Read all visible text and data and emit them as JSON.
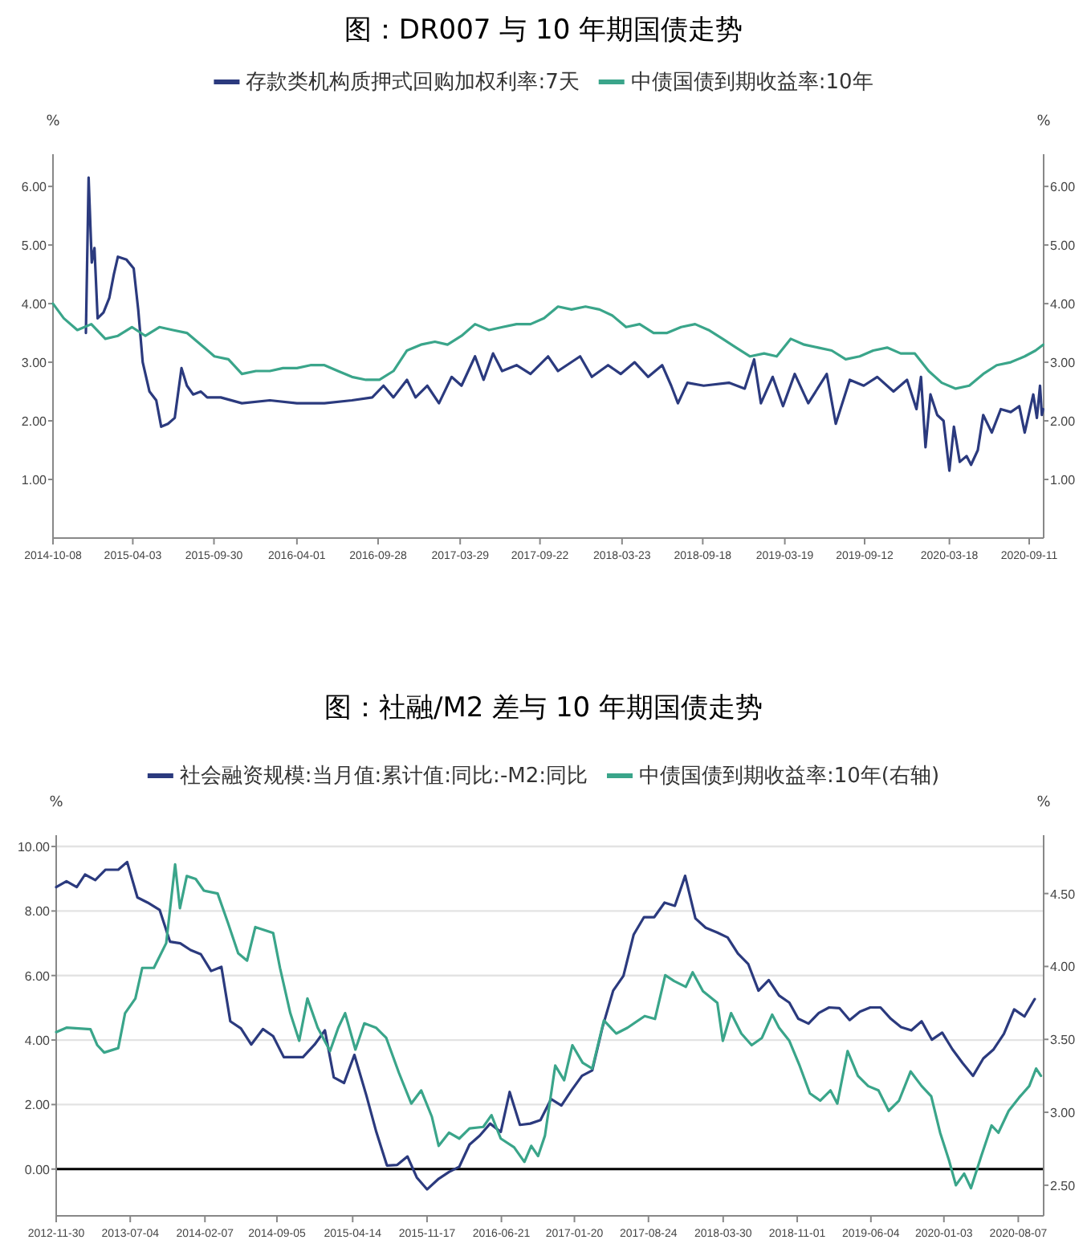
{
  "chart_data": [
    {
      "type": "line",
      "title": "图：DR007 与 10 年期国债走势",
      "ylabel": "%",
      "y2label": "%",
      "legend": "top",
      "xlim": [
        "2014-10-08",
        "2020-10-13"
      ],
      "xticks": [
        "2014-10-08",
        "2015-04-03",
        "2015-09-30",
        "2016-04-01",
        "2016-09-28",
        "2017-03-29",
        "2017-09-22",
        "2018-03-23",
        "2018-09-18",
        "2019-03-19",
        "2019-09-12",
        "2020-03-18",
        "2020-09-11"
      ],
      "ylim": [
        0,
        6.55
      ],
      "yticks": [
        {
          "value": 1,
          "label": "1.00"
        },
        {
          "value": 2,
          "label": "2.00"
        },
        {
          "value": 3,
          "label": "3.00"
        },
        {
          "value": 4,
          "label": "4.00"
        },
        {
          "value": 5,
          "label": "5.00"
        },
        {
          "value": 6,
          "label": "6.00"
        }
      ],
      "y2lim": [
        0,
        6.55
      ],
      "y2ticks": [
        {
          "value": 1,
          "label": "1.00"
        },
        {
          "value": 2,
          "label": "2.00"
        },
        {
          "value": 3,
          "label": "3.00"
        },
        {
          "value": 4,
          "label": "4.00"
        },
        {
          "value": 5,
          "label": "5.00"
        },
        {
          "value": 6,
          "label": "6.00"
        }
      ],
      "series": [
        {
          "name": "存款类机构质押式回购加权利率:7天",
          "color": "#2b3a7e",
          "x": [
            "2014-12-20",
            "2014-12-26",
            "2015-01-02",
            "2015-01-08",
            "2015-01-15",
            "2015-01-28",
            "2015-02-10",
            "2015-02-20",
            "2015-03-01",
            "2015-03-20",
            "2015-04-05",
            "2015-04-15",
            "2015-04-25",
            "2015-05-10",
            "2015-05-25",
            "2015-06-05",
            "2015-06-20",
            "2015-07-05",
            "2015-07-20",
            "2015-08-01",
            "2015-08-15",
            "2015-09-01",
            "2015-09-15",
            "2015-10-15",
            "2015-12-01",
            "2016-02-01",
            "2016-04-01",
            "2016-06-01",
            "2016-08-01",
            "2016-09-15",
            "2016-10-10",
            "2016-11-01",
            "2016-12-01",
            "2016-12-20",
            "2017-01-15",
            "2017-02-10",
            "2017-03-10",
            "2017-04-01",
            "2017-05-01",
            "2017-05-20",
            "2017-06-10",
            "2017-06-30",
            "2017-08-01",
            "2017-09-01",
            "2017-10-10",
            "2017-11-01",
            "2017-12-20",
            "2018-01-15",
            "2018-02-20",
            "2018-03-20",
            "2018-04-20",
            "2018-05-20",
            "2018-06-20",
            "2018-07-10",
            "2018-07-25",
            "2018-08-15",
            "2018-09-20",
            "2018-11-15",
            "2018-12-20",
            "2019-01-10",
            "2019-01-25",
            "2019-02-20",
            "2019-03-15",
            "2019-04-10",
            "2019-05-10",
            "2019-06-20",
            "2019-07-10",
            "2019-08-10",
            "2019-09-10",
            "2019-10-10",
            "2019-11-15",
            "2019-12-15",
            "2020-01-05",
            "2020-01-15",
            "2020-01-25",
            "2020-02-05",
            "2020-02-20",
            "2020-03-05",
            "2020-03-18",
            "2020-03-28",
            "2020-04-10",
            "2020-04-25",
            "2020-05-05",
            "2020-05-20",
            "2020-06-01",
            "2020-06-20",
            "2020-07-10",
            "2020-08-01",
            "2020-08-20",
            "2020-09-01",
            "2020-09-20",
            "2020-09-28",
            "2020-10-05",
            "2020-10-09",
            "2020-10-12"
          ],
          "values": [
            3.5,
            6.15,
            4.7,
            4.95,
            3.75,
            3.85,
            4.1,
            4.5,
            4.8,
            4.75,
            4.6,
            3.9,
            3.0,
            2.5,
            2.35,
            1.9,
            1.95,
            2.05,
            2.9,
            2.6,
            2.45,
            2.5,
            2.4,
            2.4,
            2.3,
            2.35,
            2.3,
            2.3,
            2.35,
            2.4,
            2.6,
            2.4,
            2.7,
            2.4,
            2.6,
            2.3,
            2.75,
            2.6,
            3.1,
            2.7,
            3.15,
            2.85,
            2.95,
            2.8,
            3.1,
            2.85,
            3.1,
            2.75,
            2.95,
            2.8,
            3.0,
            2.75,
            2.95,
            2.6,
            2.3,
            2.65,
            2.6,
            2.65,
            2.55,
            3.05,
            2.3,
            2.75,
            2.25,
            2.8,
            2.3,
            2.8,
            1.95,
            2.7,
            2.6,
            2.75,
            2.5,
            2.7,
            2.2,
            2.75,
            1.55,
            2.45,
            2.1,
            2.0,
            1.15,
            1.9,
            1.3,
            1.4,
            1.25,
            1.5,
            2.1,
            1.8,
            2.2,
            2.15,
            2.25,
            1.8,
            2.45,
            2.05,
            2.6,
            2.1,
            2.2
          ]
        },
        {
          "name": "中债国债到期收益率:10年",
          "color": "#3aa58a",
          "x": [
            "2014-10-08",
            "2014-11-01",
            "2014-12-01",
            "2015-01-01",
            "2015-02-01",
            "2015-03-01",
            "2015-04-01",
            "2015-05-01",
            "2015-06-01",
            "2015-07-01",
            "2015-08-01",
            "2015-09-01",
            "2015-10-01",
            "2015-11-01",
            "2015-12-01",
            "2016-01-01",
            "2016-02-01",
            "2016-03-01",
            "2016-04-01",
            "2016-05-01",
            "2016-06-01",
            "2016-07-01",
            "2016-08-01",
            "2016-09-01",
            "2016-10-01",
            "2016-11-01",
            "2016-12-01",
            "2017-01-01",
            "2017-02-01",
            "2017-03-01",
            "2017-04-01",
            "2017-05-01",
            "2017-06-01",
            "2017-07-01",
            "2017-08-01",
            "2017-09-01",
            "2017-10-01",
            "2017-11-01",
            "2017-12-01",
            "2018-01-01",
            "2018-02-01",
            "2018-03-01",
            "2018-04-01",
            "2018-05-01",
            "2018-06-01",
            "2018-07-01",
            "2018-08-01",
            "2018-09-01",
            "2018-10-01",
            "2018-11-01",
            "2018-12-01",
            "2019-01-01",
            "2019-02-01",
            "2019-03-01",
            "2019-04-01",
            "2019-05-01",
            "2019-06-01",
            "2019-07-01",
            "2019-08-01",
            "2019-09-01",
            "2019-10-01",
            "2019-11-01",
            "2019-12-01",
            "2020-01-01",
            "2020-02-01",
            "2020-03-01",
            "2020-04-01",
            "2020-05-01",
            "2020-06-01",
            "2020-07-01",
            "2020-08-01",
            "2020-09-01",
            "2020-09-25",
            "2020-10-12"
          ],
          "values": [
            4.0,
            3.75,
            3.55,
            3.65,
            3.4,
            3.45,
            3.6,
            3.45,
            3.6,
            3.55,
            3.5,
            3.3,
            3.1,
            3.05,
            2.8,
            2.85,
            2.85,
            2.9,
            2.9,
            2.95,
            2.95,
            2.85,
            2.75,
            2.7,
            2.7,
            2.85,
            3.2,
            3.3,
            3.35,
            3.3,
            3.45,
            3.65,
            3.55,
            3.6,
            3.65,
            3.65,
            3.75,
            3.95,
            3.9,
            3.95,
            3.9,
            3.8,
            3.6,
            3.65,
            3.5,
            3.5,
            3.6,
            3.65,
            3.55,
            3.4,
            3.25,
            3.1,
            3.15,
            3.1,
            3.4,
            3.3,
            3.25,
            3.2,
            3.05,
            3.1,
            3.2,
            3.25,
            3.15,
            3.15,
            2.85,
            2.65,
            2.55,
            2.6,
            2.8,
            2.95,
            3.0,
            3.1,
            3.2,
            3.3
          ]
        }
      ]
    },
    {
      "type": "line",
      "title": "图：社融/M2 差与 10 年期国债走势",
      "ylabel": "%",
      "y2label": "%",
      "legend": "top",
      "grid": "y",
      "xlim": [
        "2012-11-30",
        "2020-10-20"
      ],
      "xticks": [
        "2012-11-30",
        "2013-07-04",
        "2014-02-07",
        "2014-09-05",
        "2015-04-14",
        "2015-11-17",
        "2016-06-21",
        "2017-01-20",
        "2017-08-24",
        "2018-03-30",
        "2018-11-01",
        "2019-06-04",
        "2020-01-03",
        "2020-08-07"
      ],
      "ylim": [
        -1.45,
        10.35
      ],
      "yticks": [
        {
          "value": 0,
          "label": "0.00"
        },
        {
          "value": 2,
          "label": "2.00"
        },
        {
          "value": 4,
          "label": "4.00"
        },
        {
          "value": 6,
          "label": "6.00"
        },
        {
          "value": 8,
          "label": "8.00"
        },
        {
          "value": 10,
          "label": "10.00"
        }
      ],
      "y2lim": [
        2.29,
        4.9
      ],
      "y2ticks": [
        {
          "value": 2.5,
          "label": "2.50"
        },
        {
          "value": 3,
          "label": "3.00"
        },
        {
          "value": 3.5,
          "label": "3.50"
        },
        {
          "value": 4,
          "label": "4.00"
        },
        {
          "value": 4.5,
          "label": "4.50"
        }
      ],
      "ref_lines": [
        {
          "axis": "y",
          "value": 0,
          "color": "#000000"
        }
      ],
      "series": [
        {
          "name": "社会融资规模:当月值:累计值:同比:-M2:同比",
          "color": "#2b3a7e",
          "x": [
            "2012-11-30",
            "2012-12-30",
            "2013-01-29",
            "2013-02-22",
            "2013-03-24",
            "2013-04-23",
            "2013-05-30",
            "2013-06-25",
            "2013-07-25",
            "2013-08-24",
            "2013-09-28",
            "2013-10-28",
            "2013-11-27",
            "2013-12-27",
            "2014-01-26",
            "2014-02-25",
            "2014-03-27",
            "2014-04-22",
            "2014-05-23",
            "2014-06-22",
            "2014-07-26",
            "2014-08-25",
            "2014-09-25",
            "2014-11-20",
            "2014-12-24",
            "2015-01-23",
            "2015-02-18",
            "2015-03-20",
            "2015-04-19",
            "2015-05-24",
            "2015-06-22",
            "2015-07-23",
            "2015-08-22",
            "2015-09-21",
            "2015-10-18",
            "2015-11-17",
            "2015-12-21",
            "2016-01-20",
            "2016-02-19",
            "2016-03-20",
            "2016-04-19",
            "2016-05-19",
            "2016-06-19",
            "2016-07-15",
            "2016-08-14",
            "2016-09-13",
            "2016-10-13",
            "2016-11-13",
            "2016-12-13",
            "2017-01-12",
            "2017-02-11",
            "2017-03-13",
            "2017-04-12",
            "2017-05-13",
            "2017-06-12",
            "2017-07-12",
            "2017-08-11",
            "2017-09-10",
            "2017-10-10",
            "2017-11-09",
            "2017-12-09",
            "2018-01-08",
            "2018-02-07",
            "2018-03-13",
            "2018-04-12",
            "2018-05-12",
            "2018-06-11",
            "2018-07-11",
            "2018-08-10",
            "2018-09-09",
            "2018-10-09",
            "2018-11-04",
            "2018-12-04",
            "2019-01-03",
            "2019-02-02",
            "2019-03-04",
            "2019-04-03",
            "2019-05-03",
            "2019-06-02",
            "2019-07-02",
            "2019-08-01",
            "2019-08-31",
            "2019-09-30",
            "2019-10-30",
            "2019-11-29",
            "2019-12-29",
            "2020-01-28",
            "2020-02-27",
            "2020-03-28",
            "2020-04-27",
            "2020-05-27",
            "2020-06-26",
            "2020-07-26",
            "2020-08-25",
            "2020-09-24"
          ],
          "values": [
            8.74,
            8.92,
            8.74,
            9.13,
            8.96,
            9.28,
            9.28,
            9.52,
            8.42,
            8.26,
            8.03,
            7.05,
            7.0,
            6.79,
            6.66,
            6.14,
            6.27,
            4.58,
            4.36,
            3.86,
            4.34,
            4.12,
            3.47,
            3.47,
            3.86,
            4.3,
            2.84,
            2.67,
            3.54,
            2.28,
            1.15,
            0.11,
            0.13,
            0.39,
            -0.26,
            -0.63,
            -0.3,
            -0.09,
            0.07,
            0.76,
            1.04,
            1.41,
            1.15,
            2.39,
            1.37,
            1.41,
            1.52,
            2.17,
            1.97,
            2.45,
            2.89,
            3.06,
            4.4,
            5.53,
            5.99,
            7.27,
            7.81,
            7.81,
            8.26,
            8.16,
            9.09,
            7.77,
            7.48,
            7.33,
            7.18,
            6.68,
            6.36,
            5.53,
            5.86,
            5.38,
            5.16,
            4.66,
            4.51,
            4.84,
            5.01,
            4.99,
            4.62,
            4.88,
            5.01,
            5.01,
            4.66,
            4.4,
            4.3,
            4.58,
            4.01,
            4.23,
            3.71,
            3.28,
            2.89,
            3.43,
            3.71,
            4.19,
            4.95,
            4.73,
            5.27
          ]
        },
        {
          "name": "中债国债到期收益率:10年(右轴)",
          "color": "#3aa58a",
          "axis": "y2",
          "x": [
            "2012-11-30",
            "2012-12-30",
            "2013-03-10",
            "2013-03-30",
            "2013-04-19",
            "2013-05-30",
            "2013-06-19",
            "2013-07-19",
            "2013-08-08",
            "2013-09-11",
            "2013-10-17",
            "2013-11-12",
            "2013-11-26",
            "2013-12-16",
            "2014-01-11",
            "2014-02-04",
            "2014-03-16",
            "2014-04-15",
            "2014-05-15",
            "2014-06-10",
            "2014-07-04",
            "2014-08-25",
            "2014-09-14",
            "2014-10-14",
            "2014-11-09",
            "2014-12-03",
            "2015-01-02",
            "2015-02-07",
            "2015-03-03",
            "2015-03-23",
            "2015-04-22",
            "2015-05-18",
            "2015-06-21",
            "2015-07-21",
            "2015-08-27",
            "2015-10-02",
            "2015-10-31",
            "2015-12-01",
            "2015-12-21",
            "2016-01-20",
            "2016-02-19",
            "2016-03-20",
            "2016-04-29",
            "2016-05-23",
            "2016-06-19",
            "2016-07-28",
            "2016-08-27",
            "2016-09-16",
            "2016-10-06",
            "2016-10-26",
            "2016-11-25",
            "2016-12-21",
            "2017-01-14",
            "2017-02-13",
            "2017-03-13",
            "2017-04-16",
            "2017-05-22",
            "2017-06-24",
            "2017-08-13",
            "2017-09-12",
            "2017-10-12",
            "2017-11-07",
            "2017-12-11",
            "2017-12-31",
            "2018-01-30",
            "2018-03-13",
            "2018-03-29",
            "2018-04-22",
            "2018-05-22",
            "2018-06-21",
            "2018-07-21",
            "2018-08-20",
            "2018-09-09",
            "2018-10-09",
            "2018-11-08",
            "2018-12-08",
            "2019-01-07",
            "2019-02-06",
            "2019-02-26",
            "2019-03-28",
            "2019-04-27",
            "2019-05-27",
            "2019-06-26",
            "2019-07-26",
            "2019-08-25",
            "2019-09-28",
            "2019-10-30",
            "2019-11-27",
            "2019-12-23",
            "2020-01-18",
            "2020-02-07",
            "2020-03-02",
            "2020-03-22",
            "2020-04-21",
            "2020-05-21",
            "2020-06-10",
            "2020-07-10",
            "2020-08-09",
            "2020-09-08",
            "2020-09-28",
            "2020-10-12"
          ],
          "values": [
            3.55,
            3.58,
            3.57,
            3.46,
            3.41,
            3.44,
            3.68,
            3.78,
            3.99,
            3.99,
            4.16,
            4.7,
            4.4,
            4.62,
            4.6,
            4.52,
            4.5,
            4.3,
            4.09,
            4.04,
            4.27,
            4.23,
            3.99,
            3.68,
            3.49,
            3.78,
            3.58,
            3.42,
            3.58,
            3.68,
            3.43,
            3.61,
            3.58,
            3.51,
            3.27,
            3.06,
            3.15,
            2.97,
            2.77,
            2.86,
            2.82,
            2.89,
            2.9,
            2.98,
            2.82,
            2.76,
            2.66,
            2.77,
            2.7,
            2.84,
            3.32,
            3.22,
            3.46,
            3.34,
            3.3,
            3.63,
            3.54,
            3.58,
            3.66,
            3.64,
            3.94,
            3.9,
            3.86,
            3.96,
            3.83,
            3.75,
            3.49,
            3.68,
            3.54,
            3.46,
            3.51,
            3.67,
            3.58,
            3.49,
            3.32,
            3.13,
            3.08,
            3.15,
            3.06,
            3.42,
            3.25,
            3.18,
            3.15,
            3.01,
            3.08,
            3.28,
            3.18,
            3.11,
            2.86,
            2.67,
            2.5,
            2.58,
            2.48,
            2.7,
            2.91,
            2.86,
            3.01,
            3.1,
            3.18,
            3.3,
            3.25
          ]
        }
      ]
    }
  ]
}
